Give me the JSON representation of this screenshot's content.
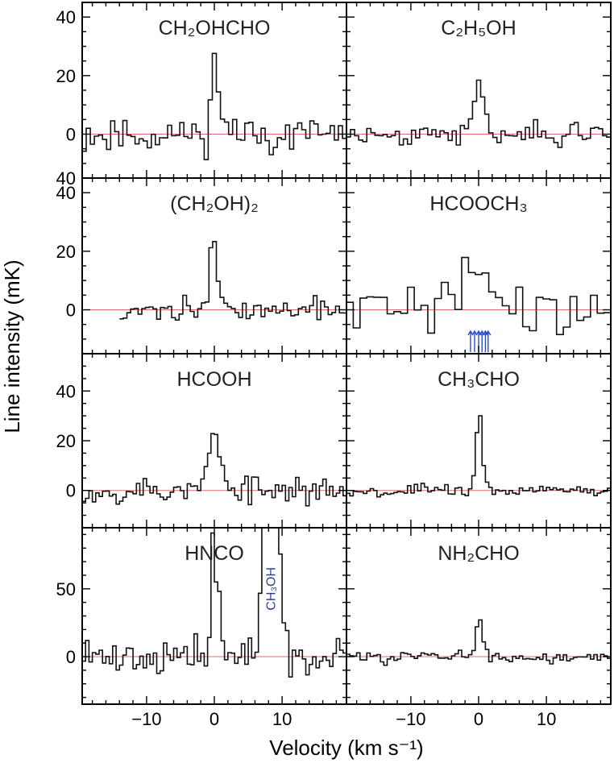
{
  "figure": {
    "xlabel": "Velocity (km s⁻¹)",
    "ylabel": "Line intensity (mK)"
  },
  "chart_data": {
    "type": "line",
    "grid": "2 columns x 4 rows of stacked panels, shared axes",
    "xlim": [
      -19.5,
      19.5
    ],
    "x_ticks": [
      -10,
      0,
      10
    ],
    "rows": [
      {
        "ylim": [
          -15,
          45
        ],
        "y_ticks": [
          0,
          20,
          40
        ],
        "y_tick_labels": [
          "0",
          "20",
          "40"
        ],
        "extra_label": "40"
      },
      {
        "ylim": [
          -15,
          45
        ],
        "y_ticks": [
          0,
          20,
          40
        ],
        "y_tick_labels": [
          "0",
          "20",
          "40"
        ]
      },
      {
        "ylim": [
          -15,
          55
        ],
        "y_ticks": [
          0,
          20,
          40
        ],
        "y_tick_labels": [
          "0",
          "20",
          "40"
        ]
      },
      {
        "ylim": [
          -35,
          95
        ],
        "y_ticks": [
          0,
          50
        ],
        "y_tick_labels": [
          "0",
          "50"
        ]
      }
    ],
    "panels": [
      {
        "row": 0,
        "col": 0,
        "title": "CH₂OHCHO",
        "vmin": -19.5,
        "vmax": 19.5,
        "step": 0.6,
        "seed": 11,
        "noise": 4.6,
        "peaks": [
          {
            "v": 0,
            "a": 20,
            "w": 0.5
          },
          {
            "v": 1,
            "a": 8,
            "w": 0.6
          }
        ]
      },
      {
        "row": 0,
        "col": 1,
        "title": "C₂H₅OH",
        "vmin": -19.5,
        "vmax": 19.5,
        "step": 0.6,
        "seed": 23,
        "noise": 2.6,
        "peaks": [
          {
            "v": 0,
            "a": 15,
            "w": 0.8
          },
          {
            "v": 14,
            "a": 5,
            "w": 0.6
          }
        ]
      },
      {
        "row": 1,
        "col": 0,
        "title": "(CH₂OH)₂",
        "vmin": -14,
        "vmax": 19.5,
        "step": 0.55,
        "seed": 37,
        "noise": 2.8,
        "peaks": [
          {
            "v": -0.2,
            "a": 22,
            "w": 0.6
          }
        ]
      },
      {
        "row": 1,
        "col": 1,
        "title": "HCOOCH₃",
        "vmin": -19.5,
        "vmax": 19.5,
        "step": 1.0,
        "seed": 41,
        "noise": 6.5,
        "peaks": [
          {
            "v": -0.5,
            "a": 14,
            "w": 1.8
          },
          {
            "v": 1.5,
            "a": 6,
            "w": 1.2
          }
        ],
        "markers": [
          -1.2,
          -0.6,
          0,
          0.5,
          1.0,
          1.4
        ]
      },
      {
        "row": 2,
        "col": 0,
        "title": "HCOOH",
        "vmin": -19.5,
        "vmax": 19.5,
        "step": 0.5,
        "seed": 53,
        "noise": 4.0,
        "peaks": [
          {
            "v": 0,
            "a": 21,
            "w": 0.9
          }
        ]
      },
      {
        "row": 2,
        "col": 1,
        "title": "CH₃CHO",
        "vmin": -19.5,
        "vmax": 19.5,
        "step": 0.5,
        "seed": 67,
        "noise": 1.8,
        "peaks": [
          {
            "v": 0.1,
            "a": 30,
            "w": 0.45
          }
        ]
      },
      {
        "row": 3,
        "col": 0,
        "title": "HNCO",
        "vmin": -19.5,
        "vmax": 19.5,
        "step": 0.5,
        "seed": 71,
        "noise": 9.5,
        "peaks": [
          {
            "v": -0.2,
            "a": 80,
            "w": 0.3
          },
          {
            "v": 0.5,
            "a": 35,
            "w": 0.5
          },
          {
            "v": 8.4,
            "a": 230,
            "w": 0.9
          }
        ],
        "annotation": {
          "text": "CH₃OH",
          "v": 8.4,
          "y": 50
        }
      },
      {
        "row": 3,
        "col": 1,
        "title": "NH₂CHO",
        "vmin": -19.5,
        "vmax": 19.5,
        "step": 0.5,
        "seed": 83,
        "noise": 3.2,
        "peaks": [
          {
            "v": 0,
            "a": 26,
            "w": 0.5
          }
        ]
      }
    ]
  }
}
